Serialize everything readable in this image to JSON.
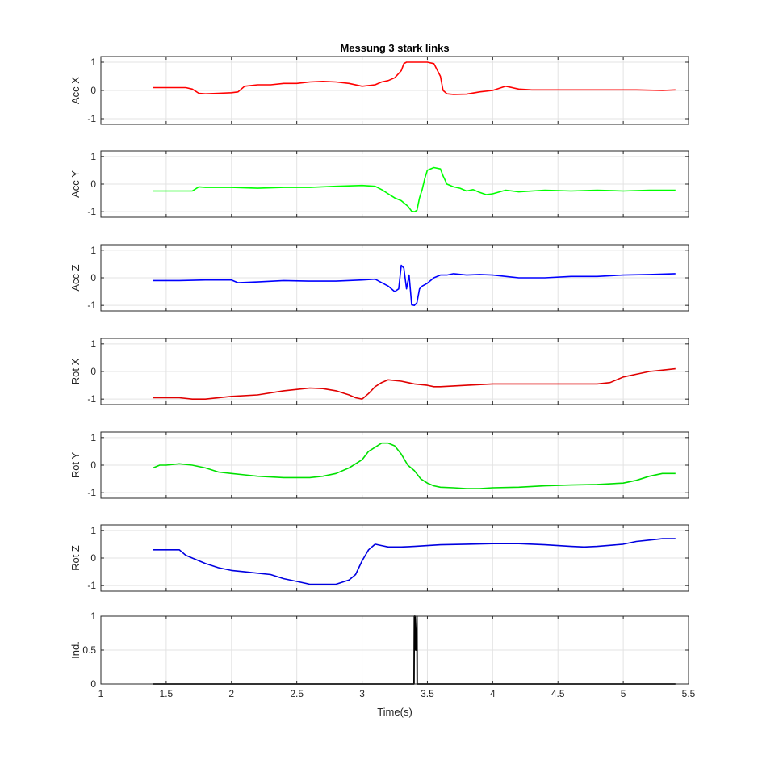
{
  "chart_data": {
    "type": "line",
    "title": "Messung 3 stark links",
    "xlabel": "Time(s)",
    "xlim": [
      1,
      5.5
    ],
    "xticks": [
      1,
      1.5,
      2,
      2.5,
      3,
      3.5,
      4,
      4.5,
      5,
      5.5
    ],
    "grid": true,
    "panels": [
      {
        "ylabel": "Acc X",
        "ylim": [
          -1.2,
          1.2
        ],
        "yticks": [
          -1,
          0,
          1
        ],
        "color": "#ff0000",
        "x": [
          1.4,
          1.5,
          1.6,
          1.65,
          1.7,
          1.75,
          1.8,
          1.9,
          2.0,
          2.05,
          2.1,
          2.2,
          2.3,
          2.4,
          2.5,
          2.6,
          2.7,
          2.8,
          2.9,
          3.0,
          3.1,
          3.15,
          3.2,
          3.25,
          3.28,
          3.3,
          3.32,
          3.34,
          3.36,
          3.4,
          3.45,
          3.5,
          3.55,
          3.6,
          3.62,
          3.65,
          3.7,
          3.8,
          3.9,
          4.0,
          4.1,
          4.2,
          4.3,
          4.5,
          4.7,
          4.9,
          5.1,
          5.3,
          5.4
        ],
        "y": [
          0.1,
          0.1,
          0.1,
          0.1,
          0.05,
          -0.1,
          -0.12,
          -0.1,
          -0.08,
          -0.05,
          0.15,
          0.2,
          0.2,
          0.25,
          0.25,
          0.3,
          0.32,
          0.3,
          0.25,
          0.15,
          0.2,
          0.3,
          0.35,
          0.45,
          0.6,
          0.7,
          0.95,
          1.0,
          1.0,
          1.0,
          1.0,
          1.0,
          0.95,
          0.5,
          0.0,
          -0.12,
          -0.14,
          -0.13,
          -0.05,
          0.0,
          0.15,
          0.05,
          0.02,
          0.02,
          0.02,
          0.02,
          0.02,
          0.0,
          0.02
        ]
      },
      {
        "ylabel": "Acc Y",
        "ylim": [
          -1.2,
          1.2
        ],
        "yticks": [
          -1,
          0,
          1
        ],
        "color": "#00ff00",
        "x": [
          1.4,
          1.5,
          1.6,
          1.7,
          1.75,
          1.8,
          2.0,
          2.2,
          2.4,
          2.6,
          2.8,
          3.0,
          3.1,
          3.15,
          3.2,
          3.25,
          3.3,
          3.35,
          3.38,
          3.4,
          3.42,
          3.44,
          3.46,
          3.48,
          3.5,
          3.55,
          3.6,
          3.62,
          3.65,
          3.7,
          3.75,
          3.8,
          3.85,
          3.9,
          3.95,
          4.0,
          4.1,
          4.2,
          4.4,
          4.6,
          4.8,
          5.0,
          5.2,
          5.4
        ],
        "y": [
          -0.25,
          -0.25,
          -0.25,
          -0.25,
          -0.1,
          -0.12,
          -0.12,
          -0.15,
          -0.12,
          -0.12,
          -0.08,
          -0.05,
          -0.08,
          -0.2,
          -0.35,
          -0.5,
          -0.6,
          -0.8,
          -0.98,
          -1.0,
          -0.95,
          -0.5,
          -0.2,
          0.2,
          0.5,
          0.6,
          0.55,
          0.3,
          0.0,
          -0.1,
          -0.15,
          -0.25,
          -0.2,
          -0.3,
          -0.38,
          -0.35,
          -0.22,
          -0.28,
          -0.22,
          -0.25,
          -0.22,
          -0.25,
          -0.22,
          -0.22
        ]
      },
      {
        "ylabel": "Acc Z",
        "ylim": [
          -1.2,
          1.2
        ],
        "yticks": [
          -1,
          0,
          1
        ],
        "color": "#0000ff",
        "x": [
          1.4,
          1.6,
          1.8,
          2.0,
          2.05,
          2.2,
          2.4,
          2.6,
          2.8,
          3.0,
          3.1,
          3.2,
          3.25,
          3.28,
          3.3,
          3.32,
          3.34,
          3.36,
          3.38,
          3.4,
          3.42,
          3.44,
          3.46,
          3.5,
          3.55,
          3.6,
          3.65,
          3.7,
          3.8,
          3.9,
          4.0,
          4.2,
          4.4,
          4.6,
          4.8,
          5.0,
          5.2,
          5.4
        ],
        "y": [
          -0.1,
          -0.1,
          -0.08,
          -0.08,
          -0.18,
          -0.15,
          -0.1,
          -0.12,
          -0.12,
          -0.08,
          -0.05,
          -0.3,
          -0.5,
          -0.4,
          0.45,
          0.35,
          -0.4,
          0.1,
          -0.98,
          -1.0,
          -0.9,
          -0.4,
          -0.3,
          -0.2,
          0.0,
          0.1,
          0.1,
          0.15,
          0.1,
          0.12,
          0.1,
          0.0,
          0.0,
          0.05,
          0.05,
          0.1,
          0.12,
          0.15
        ]
      },
      {
        "ylabel": "Rot X",
        "ylim": [
          -1.2,
          1.2
        ],
        "yticks": [
          -1,
          0,
          1
        ],
        "color": "#e00000",
        "x": [
          1.4,
          1.5,
          1.6,
          1.7,
          1.8,
          2.0,
          2.2,
          2.4,
          2.6,
          2.7,
          2.8,
          2.9,
          2.95,
          3.0,
          3.05,
          3.1,
          3.15,
          3.2,
          3.3,
          3.4,
          3.5,
          3.55,
          3.6,
          3.8,
          4.0,
          4.2,
          4.4,
          4.6,
          4.8,
          4.9,
          5.0,
          5.1,
          5.2,
          5.3,
          5.4
        ],
        "y": [
          -0.95,
          -0.95,
          -0.95,
          -1.0,
          -1.0,
          -0.9,
          -0.85,
          -0.7,
          -0.6,
          -0.62,
          -0.7,
          -0.85,
          -0.95,
          -1.0,
          -0.8,
          -0.55,
          -0.4,
          -0.3,
          -0.35,
          -0.45,
          -0.5,
          -0.55,
          -0.55,
          -0.5,
          -0.45,
          -0.45,
          -0.45,
          -0.45,
          -0.45,
          -0.4,
          -0.2,
          -0.1,
          0.0,
          0.05,
          0.1
        ]
      },
      {
        "ylabel": "Rot Y",
        "ylim": [
          -1.2,
          1.2
        ],
        "yticks": [
          -1,
          0,
          1
        ],
        "color": "#00e000",
        "x": [
          1.4,
          1.45,
          1.5,
          1.6,
          1.7,
          1.8,
          1.9,
          2.0,
          2.1,
          2.2,
          2.4,
          2.5,
          2.6,
          2.7,
          2.8,
          2.9,
          3.0,
          3.05,
          3.1,
          3.15,
          3.2,
          3.25,
          3.3,
          3.35,
          3.4,
          3.45,
          3.5,
          3.55,
          3.6,
          3.7,
          3.8,
          3.9,
          4.0,
          4.2,
          4.4,
          4.6,
          4.8,
          5.0,
          5.1,
          5.2,
          5.3,
          5.4
        ],
        "y": [
          -0.1,
          0.0,
          0.0,
          0.05,
          0.0,
          -0.1,
          -0.25,
          -0.3,
          -0.35,
          -0.4,
          -0.45,
          -0.45,
          -0.45,
          -0.4,
          -0.3,
          -0.1,
          0.2,
          0.5,
          0.65,
          0.8,
          0.8,
          0.7,
          0.4,
          0.0,
          -0.2,
          -0.5,
          -0.65,
          -0.75,
          -0.8,
          -0.82,
          -0.85,
          -0.85,
          -0.82,
          -0.8,
          -0.75,
          -0.72,
          -0.7,
          -0.65,
          -0.55,
          -0.4,
          -0.3,
          -0.3
        ]
      },
      {
        "ylabel": "Rot Z",
        "ylim": [
          -1.2,
          1.2
        ],
        "yticks": [
          -1,
          0,
          1
        ],
        "color": "#0000e0",
        "x": [
          1.4,
          1.5,
          1.6,
          1.65,
          1.7,
          1.8,
          1.9,
          2.0,
          2.1,
          2.2,
          2.3,
          2.4,
          2.5,
          2.6,
          2.7,
          2.8,
          2.9,
          2.95,
          3.0,
          3.05,
          3.1,
          3.15,
          3.2,
          3.3,
          3.4,
          3.5,
          3.6,
          3.8,
          4.0,
          4.2,
          4.4,
          4.6,
          4.7,
          4.8,
          5.0,
          5.1,
          5.2,
          5.3,
          5.4
        ],
        "y": [
          0.3,
          0.3,
          0.3,
          0.1,
          0.0,
          -0.2,
          -0.35,
          -0.45,
          -0.5,
          -0.55,
          -0.6,
          -0.75,
          -0.85,
          -0.95,
          -0.95,
          -0.95,
          -0.8,
          -0.6,
          -0.1,
          0.3,
          0.5,
          0.45,
          0.4,
          0.4,
          0.42,
          0.45,
          0.48,
          0.5,
          0.52,
          0.52,
          0.48,
          0.42,
          0.4,
          0.42,
          0.5,
          0.6,
          0.65,
          0.7,
          0.7
        ]
      },
      {
        "ylabel": "Ind.",
        "ylim": [
          0,
          1
        ],
        "yticks": [
          0,
          0.5,
          1
        ],
        "color": "#000000",
        "x": [
          1.4,
          3.398,
          3.4,
          3.405,
          3.41,
          3.415,
          3.42,
          3.422,
          5.4
        ],
        "y": [
          0,
          0,
          1,
          1,
          0.5,
          0.5,
          1,
          0,
          0
        ]
      }
    ]
  }
}
